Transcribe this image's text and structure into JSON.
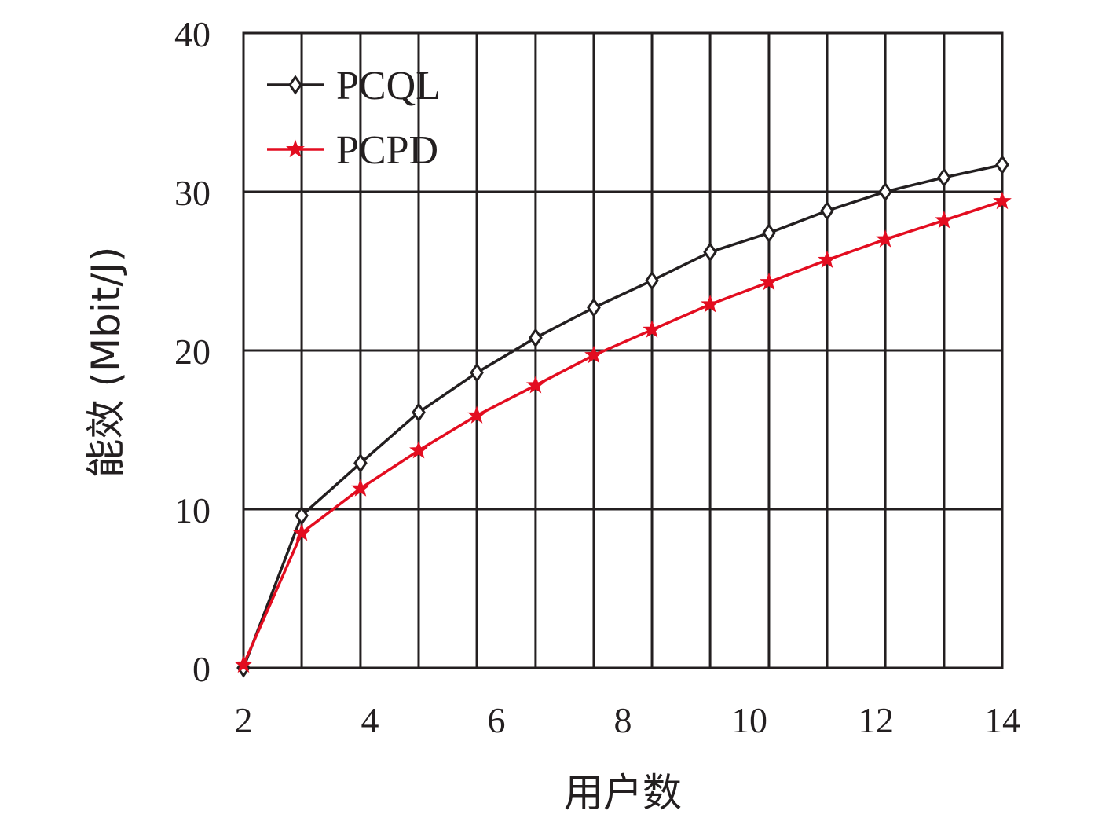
{
  "chart_data": {
    "type": "line",
    "title": "",
    "xlabel": "用户数",
    "ylabel": "能效 (Mbit/J)",
    "xlim": [
      2,
      14
    ],
    "ylim": [
      0,
      40
    ],
    "x_ticks": [
      2,
      4,
      6,
      8,
      10,
      12,
      14
    ],
    "y_ticks": [
      0,
      10,
      20,
      30,
      40
    ],
    "x_tick_labels": [
      "2",
      "4",
      "6",
      "8",
      "10",
      "12",
      "14"
    ],
    "y_tick_labels": [
      "0",
      "10",
      "20",
      "30",
      "40"
    ],
    "grid": true,
    "legend_position": "top-left",
    "x": [
      2,
      2.92,
      3.85,
      4.77,
      5.69,
      6.62,
      7.54,
      8.46,
      9.38,
      10.31,
      11.23,
      12.15,
      13.08,
      14
    ],
    "series": [
      {
        "name": "PCQL",
        "color": "#231f20",
        "marker": "diamond",
        "values": [
          0,
          9.6,
          12.9,
          16.1,
          18.6,
          20.8,
          22.7,
          24.4,
          26.2,
          27.4,
          28.8,
          30.0,
          30.9,
          31.7
        ]
      },
      {
        "name": "PCPD",
        "color": "#e30d20",
        "marker": "star",
        "values": [
          0.2,
          8.5,
          11.3,
          13.7,
          15.9,
          17.8,
          19.7,
          21.3,
          22.9,
          24.3,
          25.7,
          27.0,
          28.2,
          29.4
        ]
      }
    ]
  }
}
